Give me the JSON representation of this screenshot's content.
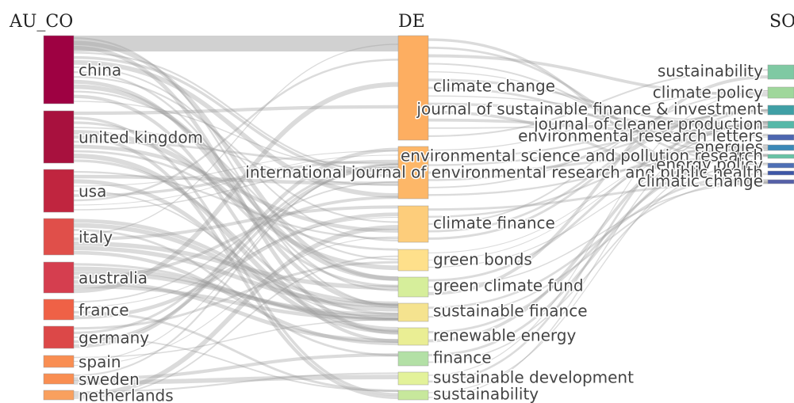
{
  "columns": [
    {
      "title": "AU_CO",
      "nodes": [
        {
          "label": "china",
          "color": "#9e0142"
        },
        {
          "label": "united kingdom",
          "color": "#a8113e"
        },
        {
          "label": "usa",
          "color": "#c0253f"
        },
        {
          "label": "italy",
          "color": "#e04f4a"
        },
        {
          "label": "australia",
          "color": "#d53e4f"
        },
        {
          "label": "france",
          "color": "#ef6146"
        },
        {
          "label": "germany",
          "color": "#dc4848"
        },
        {
          "label": "spain",
          "color": "#f98e52"
        },
        {
          "label": "sweden",
          "color": "#f98e52"
        },
        {
          "label": "netherlands",
          "color": "#f9a05e"
        }
      ]
    },
    {
      "title": "DE",
      "nodes": [
        {
          "label": "climate change",
          "color": "#fdae61"
        },
        {
          "label": "climate finance",
          "color": "#fdcd7b"
        },
        {
          "label": "green bonds",
          "color": "#fee08b"
        },
        {
          "label": "green climate fund",
          "color": "#d6ee9b"
        },
        {
          "label": "sustainable finance",
          "color": "#f5e38f"
        },
        {
          "label": "renewable energy",
          "color": "#eaee94"
        },
        {
          "label": "finance",
          "color": "#b3e0a6"
        },
        {
          "label": "sustainable development",
          "color": "#e3f29a"
        },
        {
          "label": "sustainability",
          "color": "#c7e89c"
        }
      ]
    },
    {
      "title": "SO",
      "nodes": [
        {
          "label": "sustainability",
          "color": "#7fc9a3"
        },
        {
          "label": "climate policy",
          "color": "#9fd79b"
        },
        {
          "label": "journal of sustainable finance & investment",
          "color": "#3f9fa5"
        },
        {
          "label": "journal of cleaner production",
          "color": "#56b8a8"
        },
        {
          "label": "environmental research letters",
          "color": "#4c66b0"
        },
        {
          "label": "energies",
          "color": "#3b88b7"
        },
        {
          "label": "environmental science and pollution research",
          "color": "#66c2a5"
        },
        {
          "label": "energy policy",
          "color": "#4e6fb5"
        },
        {
          "label": "international journal of environmental research and public health",
          "color": "#3d56a6"
        },
        {
          "label": "climatic change",
          "color": "#5560a8"
        }
      ]
    }
  ]
}
